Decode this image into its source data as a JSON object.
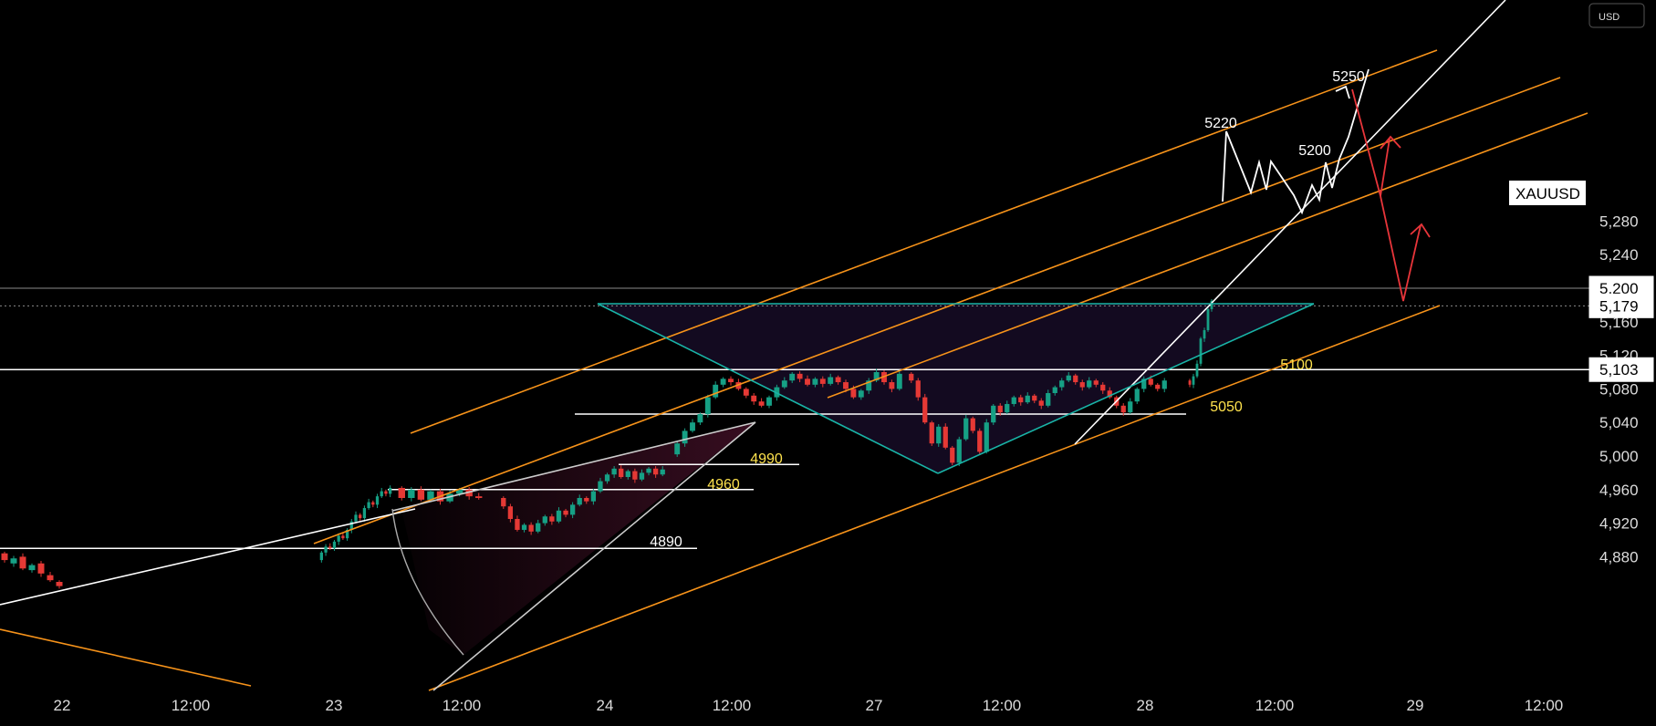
{
  "currency_badge": "USD",
  "symbol_label": "XAUUSD",
  "colors": {
    "background": "#000000",
    "axis_text": "#dcdcdc",
    "grid": "#8a8a8a",
    "orange": "#f7931a",
    "white": "#ffffff",
    "teal": "#19b3a6",
    "red": "#e8353a",
    "bull": "#16a085",
    "bear": "#e53935",
    "level_label": "#ffe34d",
    "wedge_fill": "#3a0e22",
    "pattern_fill": "#150b24"
  },
  "chart_data": {
    "type": "candlestick",
    "title": "",
    "xlabel": "",
    "ylabel": "",
    "ylim": [
      4850,
      5302
    ],
    "grid": false,
    "y_ticks": [
      "5,280",
      "5,240",
      "5,200",
      "5,160",
      "5,120",
      "5,080",
      "5,040",
      "5,000",
      "4,960",
      "4,920",
      "4,880"
    ],
    "y_tick_values": [
      5280,
      5240,
      5200,
      5160,
      5120,
      5080,
      5040,
      5000,
      4960,
      4920,
      4880
    ],
    "x_ticks": [
      "22",
      "12:00",
      "23",
      "12:00",
      "24",
      "12:00",
      "27",
      "12:00",
      "28",
      "12:00",
      "29",
      "12:00"
    ],
    "price_labels": [
      {
        "text": "5,200",
        "value": 5200,
        "style": "level"
      },
      {
        "text": "5,179",
        "value": 5179,
        "style": "current"
      },
      {
        "text": "5,103",
        "value": 5103,
        "style": "level"
      }
    ],
    "level_labels": [
      {
        "text": "5100",
        "value": 5100,
        "color": "yellow"
      },
      {
        "text": "5050",
        "value": 5050,
        "color": "yellow"
      },
      {
        "text": "4990",
        "value": 4990,
        "color": "yellow"
      },
      {
        "text": "4960",
        "value": 4960,
        "color": "yellow"
      },
      {
        "text": "4890",
        "value": 4890,
        "color": "white"
      }
    ],
    "projection_labels": [
      {
        "text": "5220",
        "value": 5220
      },
      {
        "text": "5200",
        "value": 5200
      },
      {
        "text": "5250",
        "value": 5250
      }
    ],
    "price_path": [
      [
        4884,
        4876
      ],
      [
        4872,
        4878
      ],
      [
        4880,
        4866
      ],
      [
        4864,
        4870
      ],
      [
        4872,
        4860
      ],
      [
        4858,
        4852
      ],
      [
        4850,
        4845
      ],
      [
        4876,
        4885
      ],
      [
        4885,
        4892
      ],
      [
        4892,
        4890
      ],
      [
        4890,
        4898
      ],
      [
        4898,
        4905
      ],
      [
        4905,
        4902
      ],
      [
        4902,
        4912
      ],
      [
        4912,
        4922
      ],
      [
        4922,
        4930
      ],
      [
        4930,
        4926
      ],
      [
        4926,
        4938
      ],
      [
        4938,
        4945
      ],
      [
        4945,
        4942
      ],
      [
        4942,
        4952
      ],
      [
        4952,
        4958
      ],
      [
        4958,
        4955
      ],
      [
        4955,
        4962
      ],
      [
        4962,
        4950
      ],
      [
        4950,
        4960
      ],
      [
        4960,
        4948
      ],
      [
        4948,
        4958
      ],
      [
        4958,
        4946
      ],
      [
        4946,
        4955
      ],
      [
        4955,
        4960
      ],
      [
        4960,
        4952
      ],
      [
        4952,
        4950
      ],
      [
        4950,
        4940
      ],
      [
        4940,
        4925
      ],
      [
        4925,
        4912
      ],
      [
        4912,
        4918
      ],
      [
        4918,
        4910
      ],
      [
        4910,
        4920
      ],
      [
        4920,
        4928
      ],
      [
        4928,
        4922
      ],
      [
        4922,
        4935
      ],
      [
        4935,
        4930
      ],
      [
        4930,
        4942
      ],
      [
        4942,
        4950
      ],
      [
        4950,
        4946
      ],
      [
        4946,
        4958
      ],
      [
        4958,
        4970
      ],
      [
        4970,
        4978
      ],
      [
        4978,
        4985
      ],
      [
        4985,
        4975
      ],
      [
        4975,
        4982
      ],
      [
        4982,
        4972
      ],
      [
        4972,
        4980
      ],
      [
        4980,
        4985
      ],
      [
        4985,
        4978
      ],
      [
        4978,
        4984
      ],
      [
        5002,
        5015
      ],
      [
        5015,
        5030
      ],
      [
        5030,
        5040
      ],
      [
        5040,
        5050
      ],
      [
        5050,
        5070
      ],
      [
        5070,
        5085
      ],
      [
        5085,
        5092
      ],
      [
        5092,
        5088
      ],
      [
        5088,
        5080
      ],
      [
        5080,
        5072
      ],
      [
        5072,
        5065
      ],
      [
        5065,
        5060
      ],
      [
        5060,
        5070
      ],
      [
        5070,
        5082
      ],
      [
        5082,
        5090
      ],
      [
        5090,
        5098
      ],
      [
        5098,
        5092
      ],
      [
        5092,
        5085
      ],
      [
        5085,
        5092
      ],
      [
        5092,
        5086
      ],
      [
        5086,
        5094
      ],
      [
        5094,
        5088
      ],
      [
        5088,
        5080
      ],
      [
        5080,
        5070
      ],
      [
        5070,
        5078
      ],
      [
        5078,
        5090
      ],
      [
        5090,
        5100
      ],
      [
        5100,
        5088
      ],
      [
        5088,
        5080
      ],
      [
        5080,
        5098
      ],
      [
        5098,
        5090
      ],
      [
        5090,
        5070
      ],
      [
        5070,
        5040
      ],
      [
        5040,
        5015
      ],
      [
        5015,
        5035
      ],
      [
        5035,
        5010
      ],
      [
        5010,
        4992
      ],
      [
        4992,
        5020
      ],
      [
        5020,
        5045
      ],
      [
        5045,
        5030
      ],
      [
        5030,
        5005
      ],
      [
        5005,
        5040
      ],
      [
        5040,
        5060
      ],
      [
        5060,
        5052
      ],
      [
        5052,
        5062
      ],
      [
        5062,
        5070
      ],
      [
        5070,
        5064
      ],
      [
        5064,
        5072
      ],
      [
        5072,
        5066
      ],
      [
        5066,
        5060
      ],
      [
        5060,
        5075
      ],
      [
        5075,
        5082
      ],
      [
        5082,
        5090
      ],
      [
        5090,
        5096
      ],
      [
        5096,
        5088
      ],
      [
        5088,
        5082
      ],
      [
        5082,
        5090
      ],
      [
        5090,
        5085
      ],
      [
        5085,
        5078
      ],
      [
        5078,
        5070
      ],
      [
        5070,
        5060
      ],
      [
        5060,
        5052
      ],
      [
        5052,
        5065
      ],
      [
        5065,
        5080
      ],
      [
        5080,
        5092
      ],
      [
        5092,
        5085
      ],
      [
        5085,
        5080
      ],
      [
        5080,
        5090
      ],
      [
        5090,
        5085
      ],
      [
        5085,
        5095
      ],
      [
        5095,
        5110
      ],
      [
        5110,
        5140
      ],
      [
        5140,
        5150
      ],
      [
        5150,
        5175
      ],
      [
        5175,
        5185
      ],
      [
        5185,
        5180
      ],
      [
        5180,
        5179
      ]
    ]
  }
}
